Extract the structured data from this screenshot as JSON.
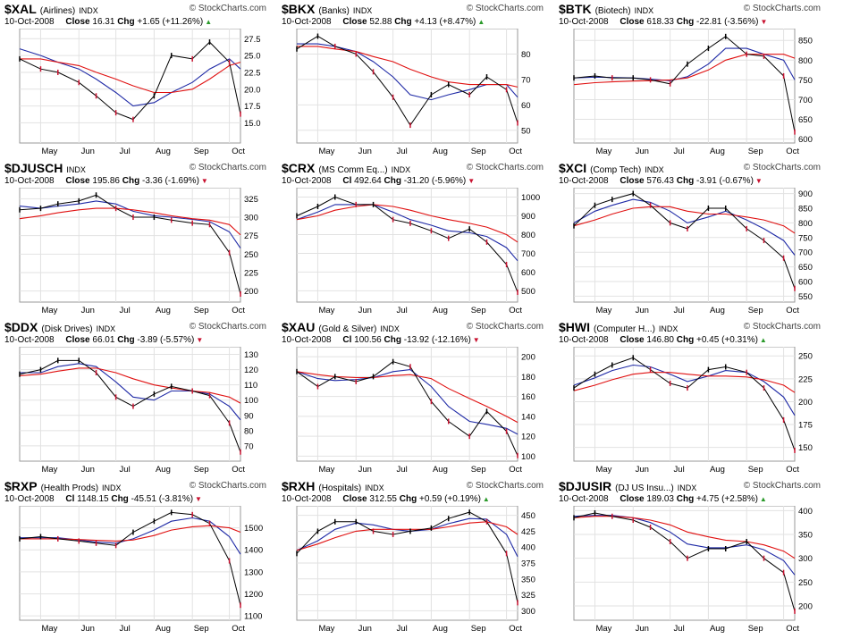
{
  "brand_label": "© StockCharts.com",
  "date_label": "10-Oct-2008",
  "months": [
    "May",
    "Jun",
    "Jul",
    "Aug",
    "Sep",
    "Oct"
  ],
  "colors": {
    "price": "#000000",
    "bar_down": "#c8102e",
    "ma_short": "#1f2aa6",
    "ma_long": "#e01010",
    "chg_up": "#2a9a2a",
    "chg_down": "#c8102e"
  },
  "chart_data": [
    {
      "type": "line",
      "symbol": "$XAL",
      "description": "(Airlines)",
      "exchange": "INDX",
      "close_label": "Close",
      "close": "16.31",
      "chg": "+1.65 (+11.26%)",
      "direction": "up",
      "yticks": [
        15.0,
        17.5,
        20.0,
        22.5,
        25.0,
        27.5
      ],
      "ylim": [
        12,
        29
      ],
      "x": [
        "2008-04-14",
        "2008-05-01",
        "2008-05-15",
        "2008-06-01",
        "2008-06-15",
        "2008-07-01",
        "2008-07-15",
        "2008-08-01",
        "2008-08-15",
        "2008-09-01",
        "2008-09-15",
        "2008-10-01",
        "2008-10-10"
      ],
      "series": [
        {
          "values": [
            24.5,
            23.0,
            22.5,
            21.0,
            19.0,
            16.5,
            15.5,
            19.0,
            25.0,
            24.5,
            27.0,
            24.0,
            16.3
          ]
        },
        {
          "values": [
            26.0,
            25.0,
            24.0,
            23.0,
            21.5,
            19.5,
            17.5,
            18.0,
            19.5,
            21.0,
            23.0,
            24.5,
            23.0
          ]
        },
        {
          "values": [
            24.5,
            24.5,
            24.0,
            23.5,
            22.5,
            21.5,
            20.5,
            19.5,
            19.5,
            20.0,
            21.5,
            23.5,
            24.0
          ]
        }
      ]
    },
    {
      "type": "line",
      "symbol": "$BKX",
      "description": "(Banks)",
      "exchange": "INDX",
      "close_label": "Close",
      "close": "52.88",
      "chg": "+4.13 (+8.47%)",
      "direction": "up",
      "yticks": [
        50,
        60,
        70,
        80
      ],
      "ylim": [
        45,
        90
      ],
      "x": [
        "2008-04-14",
        "2008-05-01",
        "2008-05-15",
        "2008-06-01",
        "2008-06-15",
        "2008-07-01",
        "2008-07-15",
        "2008-08-01",
        "2008-08-15",
        "2008-09-01",
        "2008-09-15",
        "2008-10-01",
        "2008-10-10"
      ],
      "series": [
        {
          "values": [
            82,
            87,
            83,
            80,
            73,
            63,
            52,
            64,
            68,
            64,
            71,
            66,
            52.9
          ]
        },
        {
          "values": [
            84,
            84,
            83,
            81,
            77,
            71,
            64,
            62,
            64,
            66,
            68,
            68,
            63
          ]
        },
        {
          "values": [
            83,
            83,
            82,
            81,
            79,
            77,
            74,
            71,
            69,
            68,
            68,
            68,
            67
          ]
        }
      ]
    },
    {
      "type": "line",
      "symbol": "$BTK",
      "description": "(Biotech)",
      "exchange": "INDX",
      "close_label": "Close",
      "close": "618.33",
      "chg": "-22.81 (-3.56%)",
      "direction": "down",
      "yticks": [
        600,
        650,
        700,
        750,
        800,
        850
      ],
      "ylim": [
        590,
        880
      ],
      "x": [
        "2008-04-14",
        "2008-05-01",
        "2008-05-15",
        "2008-06-01",
        "2008-06-15",
        "2008-07-01",
        "2008-07-15",
        "2008-08-01",
        "2008-08-15",
        "2008-09-01",
        "2008-09-15",
        "2008-10-01",
        "2008-10-10"
      ],
      "series": [
        {
          "values": [
            755,
            760,
            755,
            755,
            750,
            740,
            790,
            830,
            860,
            815,
            810,
            760,
            618
          ]
        },
        {
          "values": [
            755,
            757,
            756,
            755,
            752,
            748,
            758,
            790,
            830,
            830,
            815,
            800,
            750
          ]
        },
        {
          "values": [
            738,
            743,
            745,
            747,
            748,
            750,
            755,
            775,
            800,
            815,
            815,
            815,
            805
          ]
        }
      ]
    },
    {
      "type": "line",
      "symbol": "$DJUSCH",
      "description": "",
      "exchange": "INDX",
      "close_label": "Close",
      "close": "195.86",
      "chg": "-3.36 (-1.69%)",
      "direction": "down",
      "yticks": [
        200,
        225,
        250,
        275,
        300,
        325
      ],
      "ylim": [
        185,
        340
      ],
      "x": [
        "2008-04-14",
        "2008-05-01",
        "2008-05-15",
        "2008-06-01",
        "2008-06-15",
        "2008-07-01",
        "2008-07-15",
        "2008-08-01",
        "2008-08-15",
        "2008-09-01",
        "2008-09-15",
        "2008-10-01",
        "2008-10-10"
      ],
      "series": [
        {
          "values": [
            310,
            312,
            318,
            322,
            330,
            312,
            300,
            300,
            296,
            292,
            290,
            252,
            195.9
          ]
        },
        {
          "values": [
            315,
            312,
            315,
            318,
            322,
            318,
            308,
            302,
            300,
            297,
            294,
            280,
            258
          ]
        },
        {
          "values": [
            298,
            302,
            306,
            310,
            312,
            312,
            310,
            306,
            302,
            298,
            296,
            290,
            276
          ]
        }
      ]
    },
    {
      "type": "line",
      "symbol": "$CRX",
      "description": "(MS Comm Eq...)",
      "exchange": "INDX",
      "close_label": "Cl",
      "close": "492.64",
      "chg": "-31.20 (-5.96%)",
      "direction": "down",
      "yticks": [
        500,
        600,
        700,
        800,
        900,
        1000
      ],
      "ylim": [
        440,
        1050
      ],
      "x": [
        "2008-04-14",
        "2008-05-01",
        "2008-05-15",
        "2008-06-01",
        "2008-06-15",
        "2008-07-01",
        "2008-07-15",
        "2008-08-01",
        "2008-08-15",
        "2008-09-01",
        "2008-09-15",
        "2008-10-01",
        "2008-10-10"
      ],
      "series": [
        {
          "values": [
            900,
            950,
            1000,
            960,
            960,
            880,
            860,
            820,
            780,
            830,
            760,
            640,
            492.6
          ]
        },
        {
          "values": [
            880,
            920,
            960,
            960,
            960,
            920,
            880,
            850,
            820,
            810,
            790,
            730,
            660
          ]
        },
        {
          "values": [
            880,
            900,
            930,
            950,
            960,
            950,
            930,
            900,
            880,
            860,
            840,
            800,
            760
          ]
        }
      ]
    },
    {
      "type": "line",
      "symbol": "$XCI",
      "description": "(Comp Tech)",
      "exchange": "INDX",
      "close_label": "Close",
      "close": "576.43",
      "chg": "-3.91 (-0.67%)",
      "direction": "down",
      "yticks": [
        550,
        600,
        650,
        700,
        750,
        800,
        850,
        900
      ],
      "ylim": [
        530,
        920
      ],
      "x": [
        "2008-04-14",
        "2008-05-01",
        "2008-05-15",
        "2008-06-01",
        "2008-06-15",
        "2008-07-01",
        "2008-07-15",
        "2008-08-01",
        "2008-08-15",
        "2008-09-01",
        "2008-09-15",
        "2008-10-01",
        "2008-10-10"
      ],
      "series": [
        {
          "values": [
            790,
            860,
            880,
            900,
            860,
            800,
            780,
            850,
            850,
            780,
            740,
            680,
            576.4
          ]
        },
        {
          "values": [
            800,
            840,
            860,
            880,
            870,
            840,
            800,
            820,
            840,
            810,
            780,
            740,
            690
          ]
        },
        {
          "values": [
            790,
            810,
            830,
            850,
            855,
            855,
            840,
            830,
            830,
            820,
            810,
            790,
            765
          ]
        }
      ]
    },
    {
      "type": "line",
      "symbol": "$DDX",
      "description": "(Disk Drives)",
      "exchange": "INDX",
      "close_label": "Close",
      "close": "66.01",
      "chg": "-3.89 (-5.57%)",
      "direction": "down",
      "yticks": [
        70,
        80,
        90,
        100,
        110,
        120,
        130
      ],
      "ylim": [
        60,
        135
      ],
      "x": [
        "2008-04-14",
        "2008-05-01",
        "2008-05-15",
        "2008-06-01",
        "2008-06-15",
        "2008-07-01",
        "2008-07-15",
        "2008-08-01",
        "2008-08-15",
        "2008-09-01",
        "2008-09-15",
        "2008-10-01",
        "2008-10-10"
      ],
      "series": [
        {
          "values": [
            117,
            120,
            126,
            126,
            118,
            102,
            96,
            104,
            109,
            106,
            103,
            85,
            66
          ]
        },
        {
          "values": [
            118,
            118,
            122,
            124,
            122,
            112,
            102,
            100,
            106,
            106,
            104,
            96,
            87
          ]
        },
        {
          "values": [
            116,
            117,
            119,
            121,
            121,
            118,
            114,
            110,
            108,
            106,
            105,
            102,
            98
          ]
        }
      ]
    },
    {
      "type": "line",
      "symbol": "$XAU",
      "description": "(Gold & Silver)",
      "exchange": "INDX",
      "close_label": "Cl",
      "close": "100.56",
      "chg": "-13.92 (-12.16%)",
      "direction": "down",
      "yticks": [
        100,
        120,
        140,
        160,
        180,
        200
      ],
      "ylim": [
        95,
        210
      ],
      "x": [
        "2008-04-14",
        "2008-05-01",
        "2008-05-15",
        "2008-06-01",
        "2008-06-15",
        "2008-07-01",
        "2008-07-15",
        "2008-08-01",
        "2008-08-15",
        "2008-09-01",
        "2008-09-15",
        "2008-10-01",
        "2008-10-10"
      ],
      "series": [
        {
          "values": [
            185,
            170,
            180,
            175,
            180,
            195,
            190,
            155,
            135,
            120,
            145,
            125,
            100.6
          ]
        },
        {
          "values": [
            185,
            178,
            176,
            177,
            179,
            185,
            187,
            170,
            150,
            135,
            132,
            128,
            122
          ]
        },
        {
          "values": [
            185,
            182,
            180,
            179,
            179,
            181,
            182,
            178,
            168,
            158,
            150,
            140,
            134
          ]
        }
      ]
    },
    {
      "type": "line",
      "symbol": "$HWI",
      "description": "(Computer H...)",
      "exchange": "INDX",
      "close_label": "Close",
      "close": "146.80",
      "chg": "+0.45 (+0.31%)",
      "direction": "up",
      "yticks": [
        150,
        175,
        200,
        225,
        250
      ],
      "ylim": [
        135,
        260
      ],
      "x": [
        "2008-04-14",
        "2008-05-01",
        "2008-05-15",
        "2008-06-01",
        "2008-06-15",
        "2008-07-01",
        "2008-07-15",
        "2008-08-01",
        "2008-08-15",
        "2008-09-01",
        "2008-09-15",
        "2008-10-01",
        "2008-10-10"
      ],
      "series": [
        {
          "values": [
            215,
            230,
            240,
            248,
            235,
            220,
            215,
            235,
            238,
            232,
            215,
            180,
            146.8
          ]
        },
        {
          "values": [
            218,
            226,
            234,
            240,
            238,
            230,
            222,
            228,
            234,
            232,
            222,
            205,
            185
          ]
        },
        {
          "values": [
            212,
            218,
            224,
            230,
            232,
            232,
            230,
            228,
            228,
            227,
            224,
            218,
            210
          ]
        }
      ]
    },
    {
      "type": "line",
      "symbol": "$RXP",
      "description": "(Health Prods)",
      "exchange": "INDX",
      "close_label": "Cl",
      "close": "1148.15",
      "chg": "-45.51 (-3.81%)",
      "direction": "down",
      "yticks": [
        1100,
        1200,
        1300,
        1400,
        1500
      ],
      "ylim": [
        1080,
        1600
      ],
      "x": [
        "2008-04-14",
        "2008-05-01",
        "2008-05-15",
        "2008-06-01",
        "2008-06-15",
        "2008-07-01",
        "2008-07-15",
        "2008-08-01",
        "2008-08-15",
        "2008-09-01",
        "2008-09-15",
        "2008-10-01",
        "2008-10-10"
      ],
      "series": [
        {
          "values": [
            1450,
            1460,
            1450,
            1440,
            1430,
            1420,
            1480,
            1530,
            1570,
            1560,
            1520,
            1350,
            1148.2
          ]
        },
        {
          "values": [
            1455,
            1455,
            1455,
            1445,
            1435,
            1430,
            1450,
            1490,
            1530,
            1545,
            1530,
            1460,
            1380
          ]
        },
        {
          "values": [
            1450,
            1450,
            1450,
            1447,
            1443,
            1440,
            1445,
            1465,
            1490,
            1505,
            1510,
            1500,
            1480
          ]
        }
      ]
    },
    {
      "type": "line",
      "symbol": "$RXH",
      "description": "(Hospitals)",
      "exchange": "INDX",
      "close_label": "Close",
      "close": "312.55",
      "chg": "+0.59 (+0.19%)",
      "direction": "up",
      "yticks": [
        300,
        325,
        350,
        375,
        400,
        425,
        450
      ],
      "ylim": [
        285,
        465
      ],
      "x": [
        "2008-04-14",
        "2008-05-01",
        "2008-05-15",
        "2008-06-01",
        "2008-06-15",
        "2008-07-01",
        "2008-07-15",
        "2008-08-01",
        "2008-08-15",
        "2008-09-01",
        "2008-09-15",
        "2008-10-01",
        "2008-10-10"
      ],
      "series": [
        {
          "values": [
            390,
            425,
            440,
            440,
            425,
            420,
            425,
            430,
            445,
            455,
            440,
            390,
            312.6
          ]
        },
        {
          "values": [
            395,
            410,
            428,
            438,
            435,
            428,
            425,
            428,
            437,
            445,
            444,
            420,
            385
          ]
        },
        {
          "values": [
            395,
            405,
            415,
            425,
            428,
            428,
            428,
            428,
            432,
            438,
            440,
            432,
            420
          ]
        }
      ]
    },
    {
      "type": "line",
      "symbol": "$DJUSIR",
      "description": "(DJ US Insu...)",
      "exchange": "INDX",
      "close_label": "Close",
      "close": "189.03",
      "chg": "+4.75 (+2.58%)",
      "direction": "up",
      "yticks": [
        200,
        250,
        300,
        350,
        400
      ],
      "ylim": [
        170,
        410
      ],
      "x": [
        "2008-04-14",
        "2008-05-01",
        "2008-05-15",
        "2008-06-01",
        "2008-06-15",
        "2008-07-01",
        "2008-07-15",
        "2008-08-01",
        "2008-08-15",
        "2008-09-01",
        "2008-09-15",
        "2008-10-01",
        "2008-10-10"
      ],
      "series": [
        {
          "values": [
            385,
            395,
            388,
            380,
            365,
            335,
            300,
            320,
            320,
            335,
            300,
            270,
            189
          ]
        },
        {
          "values": [
            388,
            390,
            390,
            385,
            375,
            355,
            330,
            322,
            322,
            328,
            318,
            295,
            265
          ]
        },
        {
          "values": [
            385,
            388,
            388,
            385,
            380,
            370,
            355,
            345,
            338,
            335,
            328,
            315,
            300
          ]
        }
      ]
    }
  ]
}
